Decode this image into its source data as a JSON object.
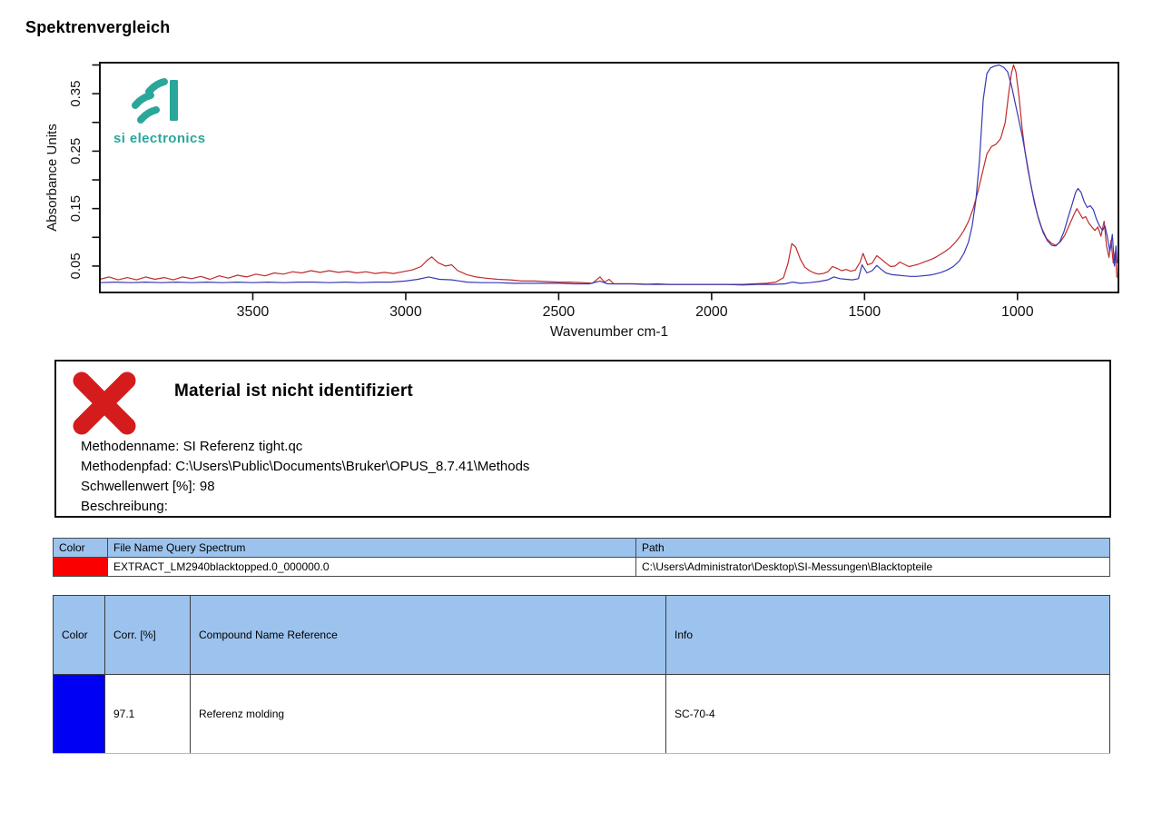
{
  "page": {
    "title": "Spektrenvergleich"
  },
  "logo": {
    "text": "si electronics",
    "color": "#2aa79a"
  },
  "chart_data": {
    "type": "line",
    "title": "",
    "xlabel": "Wavenumber cm-1",
    "ylabel": "Absorbance Units",
    "x_axis_reversed": true,
    "xlim": [
      4000,
      670
    ],
    "ylim": [
      0.004,
      0.404
    ],
    "x_ticks": [
      3500,
      3000,
      2500,
      2000,
      1500,
      1000
    ],
    "y_ticks_labeled": [
      0.05,
      0.15,
      0.25,
      0.35
    ],
    "y_ticks_minor": [
      0.1,
      0.2,
      0.3,
      0.4
    ],
    "grid": false,
    "legend": "none",
    "series": [
      {
        "name": "EXTRACT_LM2940blacktopped.0_000000.0",
        "role": "query-spectrum",
        "color": "#c02b2b",
        "points": [
          [
            4000,
            0.027
          ],
          [
            3970,
            0.031
          ],
          [
            3940,
            0.026
          ],
          [
            3910,
            0.03
          ],
          [
            3880,
            0.026
          ],
          [
            3850,
            0.031
          ],
          [
            3820,
            0.027
          ],
          [
            3790,
            0.03
          ],
          [
            3760,
            0.026
          ],
          [
            3730,
            0.031
          ],
          [
            3700,
            0.028
          ],
          [
            3670,
            0.032
          ],
          [
            3640,
            0.027
          ],
          [
            3610,
            0.033
          ],
          [
            3580,
            0.029
          ],
          [
            3550,
            0.034
          ],
          [
            3520,
            0.031
          ],
          [
            3490,
            0.036
          ],
          [
            3460,
            0.033
          ],
          [
            3430,
            0.038
          ],
          [
            3400,
            0.036
          ],
          [
            3370,
            0.04
          ],
          [
            3340,
            0.038
          ],
          [
            3310,
            0.042
          ],
          [
            3280,
            0.039
          ],
          [
            3250,
            0.042
          ],
          [
            3220,
            0.039
          ],
          [
            3190,
            0.041
          ],
          [
            3160,
            0.038
          ],
          [
            3130,
            0.04
          ],
          [
            3100,
            0.037
          ],
          [
            3070,
            0.039
          ],
          [
            3040,
            0.037
          ],
          [
            3010,
            0.04
          ],
          [
            2980,
            0.043
          ],
          [
            2950,
            0.049
          ],
          [
            2930,
            0.06
          ],
          [
            2915,
            0.066
          ],
          [
            2895,
            0.056
          ],
          [
            2870,
            0.05
          ],
          [
            2850,
            0.052
          ],
          [
            2830,
            0.042
          ],
          [
            2800,
            0.035
          ],
          [
            2770,
            0.031
          ],
          [
            2740,
            0.029
          ],
          [
            2700,
            0.027
          ],
          [
            2660,
            0.026
          ],
          [
            2620,
            0.024
          ],
          [
            2580,
            0.024
          ],
          [
            2540,
            0.023
          ],
          [
            2500,
            0.022
          ],
          [
            2460,
            0.022
          ],
          [
            2420,
            0.021
          ],
          [
            2390,
            0.02
          ],
          [
            2365,
            0.031
          ],
          [
            2350,
            0.022
          ],
          [
            2335,
            0.027
          ],
          [
            2320,
            0.019
          ],
          [
            2300,
            0.019
          ],
          [
            2260,
            0.019
          ],
          [
            2220,
            0.018
          ],
          [
            2180,
            0.019
          ],
          [
            2140,
            0.018
          ],
          [
            2100,
            0.018
          ],
          [
            2060,
            0.018
          ],
          [
            2020,
            0.018
          ],
          [
            1980,
            0.018
          ],
          [
            1940,
            0.018
          ],
          [
            1900,
            0.018
          ],
          [
            1860,
            0.019
          ],
          [
            1820,
            0.02
          ],
          [
            1790,
            0.022
          ],
          [
            1765,
            0.03
          ],
          [
            1750,
            0.055
          ],
          [
            1738,
            0.089
          ],
          [
            1725,
            0.083
          ],
          [
            1710,
            0.062
          ],
          [
            1695,
            0.048
          ],
          [
            1680,
            0.042
          ],
          [
            1665,
            0.038
          ],
          [
            1650,
            0.036
          ],
          [
            1635,
            0.037
          ],
          [
            1620,
            0.04
          ],
          [
            1605,
            0.049
          ],
          [
            1590,
            0.046
          ],
          [
            1575,
            0.042
          ],
          [
            1560,
            0.044
          ],
          [
            1545,
            0.041
          ],
          [
            1530,
            0.043
          ],
          [
            1515,
            0.056
          ],
          [
            1505,
            0.072
          ],
          [
            1490,
            0.052
          ],
          [
            1475,
            0.055
          ],
          [
            1460,
            0.068
          ],
          [
            1445,
            0.062
          ],
          [
            1430,
            0.055
          ],
          [
            1415,
            0.049
          ],
          [
            1400,
            0.05
          ],
          [
            1385,
            0.057
          ],
          [
            1370,
            0.053
          ],
          [
            1355,
            0.049
          ],
          [
            1340,
            0.051
          ],
          [
            1325,
            0.053
          ],
          [
            1310,
            0.056
          ],
          [
            1295,
            0.059
          ],
          [
            1280,
            0.062
          ],
          [
            1265,
            0.066
          ],
          [
            1250,
            0.071
          ],
          [
            1235,
            0.076
          ],
          [
            1220,
            0.082
          ],
          [
            1205,
            0.09
          ],
          [
            1190,
            0.1
          ],
          [
            1175,
            0.112
          ],
          [
            1160,
            0.128
          ],
          [
            1145,
            0.15
          ],
          [
            1130,
            0.178
          ],
          [
            1115,
            0.212
          ],
          [
            1100,
            0.245
          ],
          [
            1085,
            0.258
          ],
          [
            1070,
            0.262
          ],
          [
            1055,
            0.272
          ],
          [
            1040,
            0.3
          ],
          [
            1030,
            0.345
          ],
          [
            1020,
            0.385
          ],
          [
            1013,
            0.4
          ],
          [
            1005,
            0.388
          ],
          [
            995,
            0.345
          ],
          [
            985,
            0.29
          ],
          [
            975,
            0.248
          ],
          [
            965,
            0.215
          ],
          [
            950,
            0.175
          ],
          [
            935,
            0.14
          ],
          [
            920,
            0.115
          ],
          [
            905,
            0.098
          ],
          [
            890,
            0.09
          ],
          [
            875,
            0.086
          ],
          [
            860,
            0.092
          ],
          [
            845,
            0.104
          ],
          [
            830,
            0.122
          ],
          [
            815,
            0.14
          ],
          [
            806,
            0.15
          ],
          [
            797,
            0.142
          ],
          [
            787,
            0.133
          ],
          [
            777,
            0.136
          ],
          [
            767,
            0.125
          ],
          [
            757,
            0.118
          ],
          [
            747,
            0.112
          ],
          [
            737,
            0.118
          ],
          [
            727,
            0.102
          ],
          [
            717,
            0.128
          ],
          [
            709,
            0.085
          ],
          [
            701,
            0.065
          ],
          [
            694,
            0.095
          ],
          [
            687,
            0.055
          ],
          [
            680,
            0.075
          ],
          [
            675,
            0.03
          ]
        ]
      },
      {
        "name": "Referenz molding",
        "role": "reference-spectrum",
        "color": "#3838b4",
        "points": [
          [
            4000,
            0.021
          ],
          [
            3950,
            0.022
          ],
          [
            3900,
            0.021
          ],
          [
            3850,
            0.022
          ],
          [
            3800,
            0.021
          ],
          [
            3750,
            0.022
          ],
          [
            3700,
            0.021
          ],
          [
            3650,
            0.022
          ],
          [
            3600,
            0.021
          ],
          [
            3550,
            0.022
          ],
          [
            3500,
            0.021
          ],
          [
            3450,
            0.022
          ],
          [
            3400,
            0.021
          ],
          [
            3350,
            0.022
          ],
          [
            3300,
            0.022
          ],
          [
            3250,
            0.021
          ],
          [
            3200,
            0.022
          ],
          [
            3150,
            0.021
          ],
          [
            3100,
            0.022
          ],
          [
            3050,
            0.022
          ],
          [
            3000,
            0.024
          ],
          [
            2960,
            0.027
          ],
          [
            2925,
            0.031
          ],
          [
            2890,
            0.027
          ],
          [
            2850,
            0.026
          ],
          [
            2800,
            0.022
          ],
          [
            2750,
            0.021
          ],
          [
            2700,
            0.021
          ],
          [
            2650,
            0.02
          ],
          [
            2600,
            0.02
          ],
          [
            2550,
            0.02
          ],
          [
            2500,
            0.02
          ],
          [
            2450,
            0.019
          ],
          [
            2400,
            0.019
          ],
          [
            2365,
            0.024
          ],
          [
            2340,
            0.019
          ],
          [
            2300,
            0.019
          ],
          [
            2250,
            0.019
          ],
          [
            2200,
            0.018
          ],
          [
            2150,
            0.018
          ],
          [
            2100,
            0.018
          ],
          [
            2050,
            0.018
          ],
          [
            2000,
            0.018
          ],
          [
            1950,
            0.018
          ],
          [
            1900,
            0.017
          ],
          [
            1850,
            0.018
          ],
          [
            1800,
            0.018
          ],
          [
            1760,
            0.019
          ],
          [
            1735,
            0.022
          ],
          [
            1710,
            0.02
          ],
          [
            1680,
            0.021
          ],
          [
            1650,
            0.023
          ],
          [
            1620,
            0.026
          ],
          [
            1600,
            0.031
          ],
          [
            1580,
            0.028
          ],
          [
            1560,
            0.027
          ],
          [
            1540,
            0.026
          ],
          [
            1520,
            0.028
          ],
          [
            1508,
            0.052
          ],
          [
            1492,
            0.038
          ],
          [
            1475,
            0.042
          ],
          [
            1460,
            0.051
          ],
          [
            1445,
            0.044
          ],
          [
            1430,
            0.038
          ],
          [
            1410,
            0.035
          ],
          [
            1390,
            0.034
          ],
          [
            1370,
            0.033
          ],
          [
            1350,
            0.032
          ],
          [
            1330,
            0.032
          ],
          [
            1310,
            0.033
          ],
          [
            1290,
            0.034
          ],
          [
            1270,
            0.036
          ],
          [
            1250,
            0.039
          ],
          [
            1230,
            0.043
          ],
          [
            1210,
            0.049
          ],
          [
            1190,
            0.059
          ],
          [
            1175,
            0.072
          ],
          [
            1160,
            0.092
          ],
          [
            1148,
            0.12
          ],
          [
            1136,
            0.165
          ],
          [
            1124,
            0.235
          ],
          [
            1112,
            0.34
          ],
          [
            1100,
            0.385
          ],
          [
            1088,
            0.395
          ],
          [
            1075,
            0.398
          ],
          [
            1060,
            0.4
          ],
          [
            1045,
            0.396
          ],
          [
            1032,
            0.388
          ],
          [
            1020,
            0.365
          ],
          [
            1008,
            0.335
          ],
          [
            996,
            0.305
          ],
          [
            984,
            0.275
          ],
          [
            972,
            0.24
          ],
          [
            958,
            0.196
          ],
          [
            944,
            0.158
          ],
          [
            930,
            0.13
          ],
          [
            916,
            0.108
          ],
          [
            902,
            0.094
          ],
          [
            888,
            0.086
          ],
          [
            875,
            0.085
          ],
          [
            862,
            0.092
          ],
          [
            848,
            0.11
          ],
          [
            834,
            0.135
          ],
          [
            820,
            0.16
          ],
          [
            810,
            0.178
          ],
          [
            802,
            0.185
          ],
          [
            792,
            0.178
          ],
          [
            782,
            0.162
          ],
          [
            772,
            0.152
          ],
          [
            762,
            0.155
          ],
          [
            752,
            0.148
          ],
          [
            742,
            0.132
          ],
          [
            732,
            0.12
          ],
          [
            722,
            0.112
          ],
          [
            714,
            0.12
          ],
          [
            706,
            0.1
          ],
          [
            698,
            0.075
          ],
          [
            690,
            0.105
          ],
          [
            683,
            0.05
          ],
          [
            678,
            0.085
          ],
          [
            675,
            0.055
          ]
        ]
      }
    ]
  },
  "result_box": {
    "title": "Material ist nicht identifiziert",
    "status": "not-identified",
    "status_color": "#d51c1c",
    "lines": [
      "Methodenname: SI Referenz tight.qc",
      "Methodenpfad: C:\\Users\\Public\\Documents\\Bruker\\OPUS_8.7.41\\Methods",
      "Schwellenwert [%]: 98",
      "Beschreibung:"
    ]
  },
  "query_table": {
    "headers": [
      "Color",
      "File Name Query Spectrum",
      "Path"
    ],
    "rows": [
      {
        "color": "#fb0000",
        "file_name": "EXTRACT_LM2940blacktopped.0_000000.0",
        "path": "C:\\Users\\Administrator\\Desktop\\SI-Messungen\\Blacktopteile"
      }
    ]
  },
  "result_table": {
    "headers": [
      "Color",
      "Corr. [%]",
      "Compound Name Reference",
      "Info"
    ],
    "rows": [
      {
        "color": "#0000f2",
        "corr": "97.1",
        "compound": "Referenz molding",
        "info": "SC-70-4"
      }
    ]
  }
}
